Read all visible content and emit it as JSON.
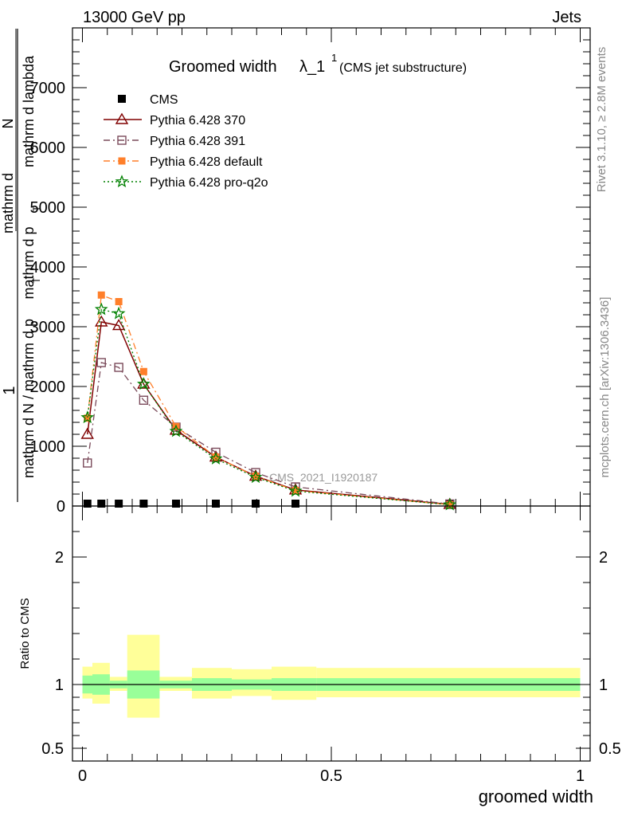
{
  "header": {
    "left": "13000 GeV pp",
    "right": "Jets"
  },
  "chart_data": {
    "type": "line",
    "title": "Groomed width",
    "title_symbol": "λ_1",
    "title_superscript": "1",
    "title_note": "(CMS jet substructure)",
    "xlabel": "groomed width",
    "ylabel_top": "1",
    "ylabel_numerator": "mathrm d",
    "ylabel_numerator2": "N",
    "ylabel_denominator": "mathrm d p",
    "ylabel_denominator2": "mathrm d lambda",
    "ylabel_sub_T": "T",
    "ylabel_bottom": "mathrm d N / mathrm d p",
    "ylabel_bottom_sub": "T",
    "ratio_ylabel": "Ratio to CMS",
    "right_label_top": "Rivet 3.1.10, ≥ 2.8M events",
    "right_label_bottom": "mcplots.cern.ch [arXiv:1306.3436]",
    "watermark": "CMS_2021_I1920187",
    "xlim": [
      -0.02,
      1.02
    ],
    "ylim": [
      0,
      8000
    ],
    "ratio_ylim": [
      0.4,
      2.4
    ],
    "x_ticks": [
      0,
      0.5,
      1
    ],
    "x_tick_labels": [
      "0",
      "0.5",
      "1"
    ],
    "y_ticks": [
      0,
      1000,
      2000,
      3000,
      4000,
      5000,
      6000,
      7000
    ],
    "y_tick_labels": [
      "0",
      "1000",
      "2000",
      "3000",
      "4000",
      "5000",
      "6000",
      "7000"
    ],
    "ratio_ticks": [
      0.5,
      1,
      2
    ],
    "ratio_tick_labels": [
      "0.5",
      "1",
      "2"
    ],
    "grid": false,
    "legend_position": "top-left",
    "x": [
      0.01,
      0.038,
      0.073,
      0.123,
      0.188,
      0.268,
      0.348,
      0.428,
      0.738
    ],
    "bin_edges": [
      0.0,
      0.02,
      0.055,
      0.09,
      0.155,
      0.22,
      0.3,
      0.38,
      0.47,
      1.0
    ],
    "series": [
      {
        "name": "CMS",
        "style": "cms",
        "color": "#000000",
        "values": [
          30,
          30,
          25,
          20,
          18,
          15,
          12,
          10,
          5
        ]
      },
      {
        "name": "Pythia 6.428 370",
        "style": "triangle",
        "color": "#800000",
        "values": [
          1200,
          3080,
          3020,
          2040,
          1270,
          820,
          500,
          270,
          28
        ]
      },
      {
        "name": "Pythia 6.428 391",
        "style": "square",
        "color": "#7a4a5a",
        "values": [
          720,
          2400,
          2320,
          1770,
          1320,
          900,
          560,
          320,
          34
        ]
      },
      {
        "name": "Pythia 6.428 default",
        "style": "filledsquare",
        "color": "#ff7f2a",
        "values": [
          1470,
          3530,
          3420,
          2250,
          1330,
          820,
          500,
          260,
          22
        ]
      },
      {
        "name": "Pythia 6.428 pro-q2o",
        "style": "star",
        "color": "#008000",
        "values": [
          1480,
          3290,
          3220,
          2040,
          1250,
          790,
          480,
          250,
          22
        ]
      }
    ],
    "ratio_bands": {
      "inner_lo": [
        0.93,
        0.92,
        0.97,
        0.89,
        0.97,
        0.95,
        0.96,
        0.95,
        0.95
      ],
      "inner_hi": [
        1.07,
        1.08,
        1.03,
        1.11,
        1.03,
        1.05,
        1.04,
        1.05,
        1.05
      ],
      "outer_lo": [
        0.89,
        0.85,
        0.95,
        0.74,
        0.95,
        0.89,
        0.91,
        0.88,
        0.9
      ],
      "outer_hi": [
        1.14,
        1.17,
        1.06,
        1.39,
        1.06,
        1.13,
        1.12,
        1.14,
        1.13
      ],
      "inner_color": "#99ff99",
      "outer_color": "#ffff99"
    }
  }
}
